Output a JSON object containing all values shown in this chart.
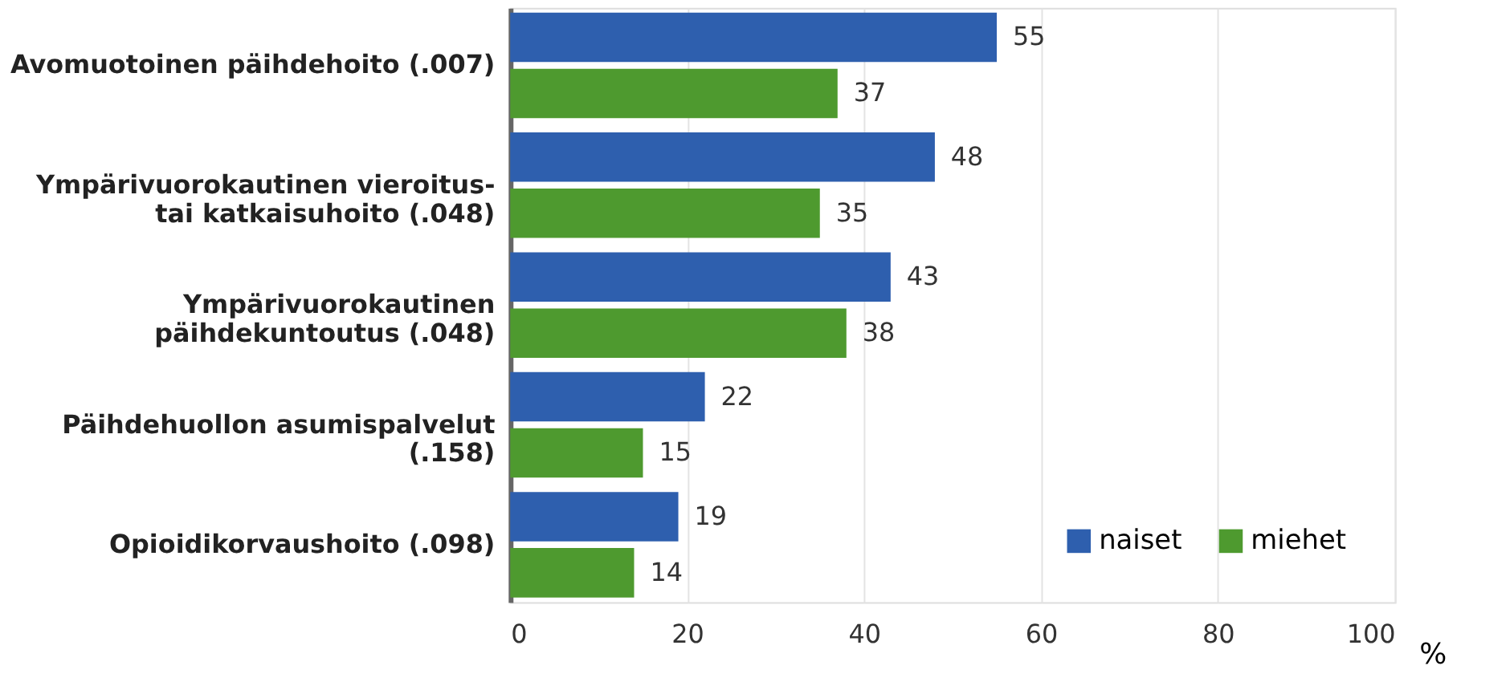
{
  "chart_data": {
    "type": "bar",
    "orientation": "horizontal",
    "xlabel": "%",
    "categories": [
      "Avomuotoinen päihdehoito (.007)",
      "Ympärivuorokautinen vieroitus-\ntai katkaisuhoito (.048)",
      "Ympärivuorokautinen\npäihdekuntoutus (.048)",
      "Päihdehuollon asumispalvelut\n(.158)",
      "Opioidikorvaushoito (.098)"
    ],
    "series": [
      {
        "name": "naiset",
        "color": "#2e5fae",
        "values": [
          55,
          48,
          43,
          22,
          19
        ]
      },
      {
        "name": "miehet",
        "color": "#4e9a2f",
        "values": [
          37,
          35,
          38,
          15,
          14
        ]
      }
    ],
    "xlim": [
      0,
      100
    ],
    "xticks": [
      0,
      20,
      40,
      60,
      80,
      100
    ],
    "grid": "x",
    "legend": "bottom right",
    "data_labels": true
  }
}
